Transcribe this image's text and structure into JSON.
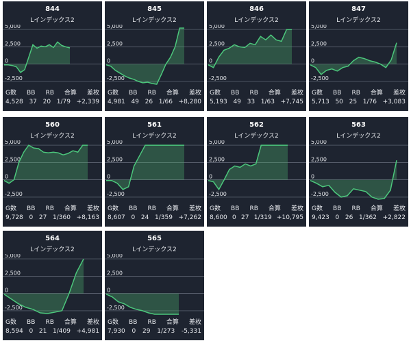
{
  "model_label": "Lインデックス2",
  "stat_headers": [
    "G数",
    "BB",
    "RB",
    "合算",
    "差枚"
  ],
  "y_tick_labels": [
    "5,000",
    "2,500",
    "0",
    "-2,500"
  ],
  "machines": [
    {
      "number": "844",
      "games": "4,528",
      "bb": "37",
      "rb": "20",
      "combined": "1/79",
      "diff": "+2,339",
      "chart_data": {
        "type": "area",
        "ylim": [
          -3000,
          5500
        ],
        "values": [
          -100,
          -100,
          -200,
          -400,
          -1200,
          -800,
          1000,
          2800,
          2300,
          2600,
          2500,
          2800,
          2400,
          3200,
          2700,
          2500,
          2339
        ]
      }
    },
    {
      "number": "845",
      "games": "4,981",
      "bb": "49",
      "rb": "26",
      "combined": "1/66",
      "diff": "+8,280",
      "chart_data": {
        "type": "area",
        "ylim": [
          -3000,
          5500
        ],
        "values": [
          -100,
          -300,
          -900,
          -1300,
          -1700,
          -2000,
          -2200,
          -2500,
          -2700,
          -2600,
          -2800,
          -2900,
          -1500,
          0,
          1000,
          2500,
          5200,
          5200
        ]
      }
    },
    {
      "number": "846",
      "games": "5,193",
      "bb": "49",
      "rb": "33",
      "combined": "1/63",
      "diff": "+7,745",
      "chart_data": {
        "type": "area",
        "ylim": [
          -3000,
          5500
        ],
        "values": [
          -100,
          -500,
          1000,
          2000,
          2300,
          2800,
          2500,
          2400,
          3000,
          2800,
          4000,
          3500,
          4200,
          3500,
          3300,
          5000,
          5000
        ]
      }
    },
    {
      "number": "847",
      "games": "5,713",
      "bb": "50",
      "rb": "25",
      "combined": "1/76",
      "diff": "+3,083",
      "chart_data": {
        "type": "area",
        "ylim": [
          -3000,
          5500
        ],
        "values": [
          -100,
          -500,
          -1500,
          -900,
          -700,
          -1000,
          -500,
          -300,
          500,
          1000,
          800,
          500,
          300,
          0,
          -500,
          600,
          3083
        ]
      }
    },
    {
      "number": "560",
      "games": "9,728",
      "bb": "0",
      "rb": "27",
      "combined": "1/360",
      "diff": "+8,163",
      "chart_data": {
        "type": "area",
        "ylim": [
          -3000,
          5500
        ],
        "values": [
          -100,
          -500,
          0,
          2500,
          4000,
          5000,
          4600,
          4500,
          4000,
          3900,
          4000,
          3900,
          3600,
          3800,
          4200,
          4000,
          5000,
          5000
        ]
      }
    },
    {
      "number": "561",
      "games": "8,607",
      "bb": "0",
      "rb": "24",
      "combined": "1/359",
      "diff": "+7,262",
      "chart_data": {
        "type": "area",
        "ylim": [
          -3000,
          5500
        ],
        "values": [
          -100,
          -100,
          -500,
          -1400,
          -1000,
          2000,
          3500,
          5000,
          5000,
          5000,
          5000,
          5000,
          5000,
          5000,
          5000
        ]
      }
    },
    {
      "number": "562",
      "games": "8,600",
      "bb": "0",
      "rb": "27",
      "combined": "1/319",
      "diff": "+10,795",
      "chart_data": {
        "type": "area",
        "ylim": [
          -3000,
          5500
        ],
        "values": [
          -100,
          -300,
          -1400,
          0,
          1500,
          2000,
          1800,
          2300,
          2000,
          2300,
          5000,
          5000,
          5000,
          5000,
          5000,
          5000
        ]
      }
    },
    {
      "number": "563",
      "games": "9,423",
      "bb": "0",
      "rb": "26",
      "combined": "1/362",
      "diff": "+2,822",
      "chart_data": {
        "type": "area",
        "ylim": [
          -3000,
          5500
        ],
        "values": [
          -100,
          -500,
          -1000,
          -800,
          -1800,
          -2500,
          -2300,
          -1300,
          -1500,
          -1700,
          -2500,
          -2800,
          -2700,
          -1500,
          2822
        ]
      }
    },
    {
      "number": "564",
      "games": "8,594",
      "bb": "0",
      "rb": "21",
      "combined": "1/409",
      "diff": "+4,981",
      "chart_data": {
        "type": "area",
        "ylim": [
          -3000,
          5500
        ],
        "values": [
          -100,
          -800,
          -1500,
          -2000,
          -2300,
          -2800,
          -2900,
          -2700,
          -2500,
          0,
          3000,
          4981
        ]
      }
    },
    {
      "number": "565",
      "games": "7,930",
      "bb": "0",
      "rb": "29",
      "combined": "1/273",
      "diff": "-5,331",
      "chart_data": {
        "type": "area",
        "ylim": [
          -3000,
          5500
        ],
        "values": [
          -100,
          -500,
          -1200,
          -1500,
          -2000,
          -2300,
          -2500,
          -2800,
          -3000,
          -3000,
          -3000,
          -3000,
          -3000
        ]
      }
    }
  ]
}
